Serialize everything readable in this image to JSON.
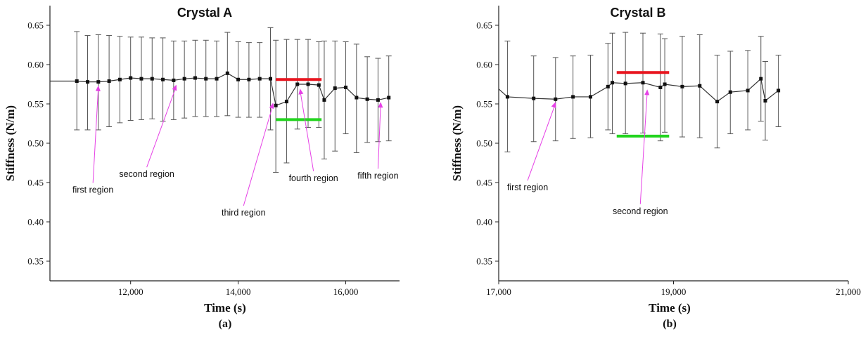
{
  "chart_data": [
    {
      "type": "line",
      "title": "Crystal A",
      "xlabel": "Time (s)",
      "ylabel": "Stiffness (N/m)",
      "panel_label": "(a)",
      "xlim": [
        10500,
        17000
      ],
      "ylim": [
        0.325,
        0.675
      ],
      "xticks": [
        12000,
        14000,
        16000
      ],
      "xtick_labels": [
        "12,000",
        "14,000",
        "16,000"
      ],
      "yticks": [
        0.35,
        0.4,
        0.45,
        0.5,
        0.55,
        0.6,
        0.65
      ],
      "ytick_labels": [
        "0.35",
        "0.40",
        "0.45",
        "0.50",
        "0.55",
        "0.60",
        "0.65"
      ],
      "grid": false,
      "line_start_x": 10500,
      "line_start_y": 0.579,
      "series": [
        {
          "x": [
            11000,
            11200,
            11400,
            11600,
            11800,
            12000,
            12200,
            12400,
            12600,
            12800,
            13000,
            13200,
            13400,
            13600,
            13800,
            14000,
            14200,
            14400,
            14600,
            14700,
            14900,
            15100,
            15300,
            15500,
            15600,
            15800,
            16000,
            16200,
            16400,
            16600,
            16800
          ],
          "y": [
            0.579,
            0.578,
            0.578,
            0.579,
            0.581,
            0.583,
            0.582,
            0.582,
            0.581,
            0.58,
            0.582,
            0.583,
            0.582,
            0.582,
            0.589,
            0.581,
            0.581,
            0.582,
            0.582,
            0.548,
            0.553,
            0.575,
            0.575,
            0.574,
            0.555,
            0.57,
            0.571,
            0.558,
            0.556,
            0.555,
            0.558
          ],
          "err_hi": [
            0.642,
            0.637,
            0.638,
            0.637,
            0.636,
            0.635,
            0.635,
            0.634,
            0.634,
            0.63,
            0.63,
            0.631,
            0.631,
            0.63,
            0.641,
            0.629,
            0.628,
            0.628,
            0.647,
            0.631,
            0.632,
            0.632,
            0.632,
            0.629,
            0.63,
            0.63,
            0.629,
            0.626,
            0.61,
            0.608,
            0.611
          ],
          "err_lo": [
            0.517,
            0.517,
            0.517,
            0.521,
            0.526,
            0.529,
            0.53,
            0.531,
            0.528,
            0.53,
            0.532,
            0.534,
            0.534,
            0.534,
            0.535,
            0.533,
            0.533,
            0.533,
            0.517,
            0.463,
            0.475,
            0.518,
            0.52,
            0.52,
            0.48,
            0.49,
            0.512,
            0.488,
            0.501,
            0.502,
            0.503
          ]
        }
      ],
      "hlines": [
        {
          "color": "#e8141e",
          "x0": 14700,
          "x1": 15550,
          "y": 0.581
        },
        {
          "color": "#22d41e",
          "x0": 14700,
          "x1": 15550,
          "y": 0.53
        }
      ],
      "annotations": [
        {
          "text": "first region",
          "x": 11300,
          "y": 0.437,
          "arrow_to_x": 11400,
          "arrow_to_y": 0.577
        },
        {
          "text": "second region",
          "x": 12300,
          "y": 0.457,
          "arrow_to_x": 12850,
          "arrow_to_y": 0.578
        },
        {
          "text": "third region",
          "x": 14100,
          "y": 0.408,
          "arrow_to_x": 14650,
          "arrow_to_y": 0.555
        },
        {
          "text": "fourth region",
          "x": 15400,
          "y": 0.452,
          "arrow_to_x": 15150,
          "arrow_to_y": 0.573
        },
        {
          "text": "fifth region",
          "x": 16600,
          "y": 0.455,
          "arrow_to_x": 16650,
          "arrow_to_y": 0.556
        }
      ],
      "annotation_color": "#e640e6"
    },
    {
      "type": "line",
      "title": "Crystal B",
      "xlabel": "Time (s)",
      "ylabel": "Stiffness (N/m)",
      "panel_label": "(b)",
      "xlim": [
        17000,
        21000
      ],
      "ylim": [
        0.325,
        0.675
      ],
      "xticks": [
        17000,
        19000,
        21000
      ],
      "xtick_labels": [
        "17,000",
        "19,000",
        "21,000"
      ],
      "yticks": [
        0.35,
        0.4,
        0.45,
        0.5,
        0.55,
        0.6,
        0.65
      ],
      "ytick_labels": [
        "0.35",
        "0.40",
        "0.45",
        "0.50",
        "0.55",
        "0.60",
        "0.65"
      ],
      "grid": false,
      "line_start_x": 17000,
      "line_start_y": 0.569,
      "series": [
        {
          "x": [
            17100,
            17400,
            17650,
            17850,
            18050,
            18250,
            18300,
            18450,
            18650,
            18850,
            18900,
            19100,
            19300,
            19500,
            19650,
            19850,
            20000,
            20050,
            20200
          ],
          "y": [
            0.559,
            0.557,
            0.556,
            0.559,
            0.559,
            0.572,
            0.577,
            0.576,
            0.577,
            0.571,
            0.575,
            0.572,
            0.573,
            0.553,
            0.565,
            0.567,
            0.582,
            0.554,
            0.567
          ],
          "err_hi": [
            0.63,
            0.611,
            0.609,
            0.611,
            0.612,
            0.627,
            0.64,
            0.641,
            0.64,
            0.639,
            0.633,
            0.636,
            0.638,
            0.612,
            0.617,
            0.618,
            0.636,
            0.604,
            0.612
          ],
          "err_lo": [
            0.489,
            0.502,
            0.503,
            0.506,
            0.507,
            0.517,
            0.512,
            0.512,
            0.513,
            0.503,
            0.514,
            0.508,
            0.507,
            0.494,
            0.512,
            0.517,
            0.528,
            0.504,
            0.521
          ]
        }
      ],
      "hlines": [
        {
          "color": "#e8141e",
          "x0": 18350,
          "x1": 18950,
          "y": 0.59
        },
        {
          "color": "#22d41e",
          "x0": 18350,
          "x1": 18950,
          "y": 0.509
        }
      ],
      "annotations": [
        {
          "text": "first region",
          "x": 17330,
          "y": 0.44,
          "arrow_to_x": 17650,
          "arrow_to_y": 0.556
        },
        {
          "text": "second region",
          "x": 18620,
          "y": 0.41,
          "arrow_to_x": 18700,
          "arrow_to_y": 0.572
        }
      ],
      "annotation_color": "#e640e6"
    }
  ]
}
